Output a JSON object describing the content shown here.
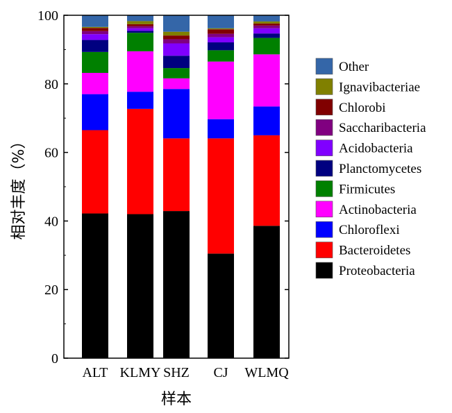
{
  "chart_data": {
    "type": "bar",
    "stacked": true,
    "title": "",
    "xlabel": "样本",
    "ylabel": "相对丰度（%）",
    "ylim": [
      0,
      100
    ],
    "yticks": [
      0,
      20,
      40,
      60,
      80,
      100
    ],
    "legend_position": "right",
    "categories": [
      "ALT",
      "KLMY",
      "SHZ",
      "CJ",
      "WLMQ"
    ],
    "series": [
      {
        "name": "Proteobacteria",
        "color": "#000000",
        "values": [
          42.2,
          42.0,
          42.9,
          30.5,
          38.6
        ]
      },
      {
        "name": "Bacteroidetes",
        "color": "#FF0000",
        "values": [
          24.3,
          30.7,
          21.2,
          33.6,
          26.4
        ]
      },
      {
        "name": "Chloroflexi",
        "color": "#0000FF",
        "values": [
          10.5,
          5.0,
          14.4,
          5.6,
          8.4
        ]
      },
      {
        "name": "Actinobacteria",
        "color": "#FF00FF",
        "values": [
          6.2,
          11.8,
          3.1,
          16.8,
          15.2
        ]
      },
      {
        "name": "Firmicutes",
        "color": "#008000",
        "values": [
          6.1,
          5.4,
          3.0,
          3.3,
          4.8
        ]
      },
      {
        "name": "Planctomycetes",
        "color": "#000080",
        "values": [
          3.5,
          0.6,
          3.6,
          2.3,
          1.3
        ]
      },
      {
        "name": "Acidobacteria",
        "color": "#8000FF",
        "values": [
          1.7,
          0.7,
          3.6,
          1.5,
          1.5
        ]
      },
      {
        "name": "Saccharibacteria",
        "color": "#800080",
        "values": [
          0.9,
          0.6,
          1.2,
          1.0,
          0.8
        ]
      },
      {
        "name": "Chlorobi",
        "color": "#800000",
        "values": [
          0.9,
          0.6,
          1.1,
          1.3,
          0.6
        ]
      },
      {
        "name": "Ignavibacteriae",
        "color": "#808000",
        "values": [
          0.3,
          0.9,
          1.1,
          0.3,
          0.6
        ]
      },
      {
        "name": "Other",
        "color": "#3466A8",
        "values": [
          3.4,
          1.7,
          4.8,
          3.8,
          1.8
        ]
      }
    ]
  }
}
